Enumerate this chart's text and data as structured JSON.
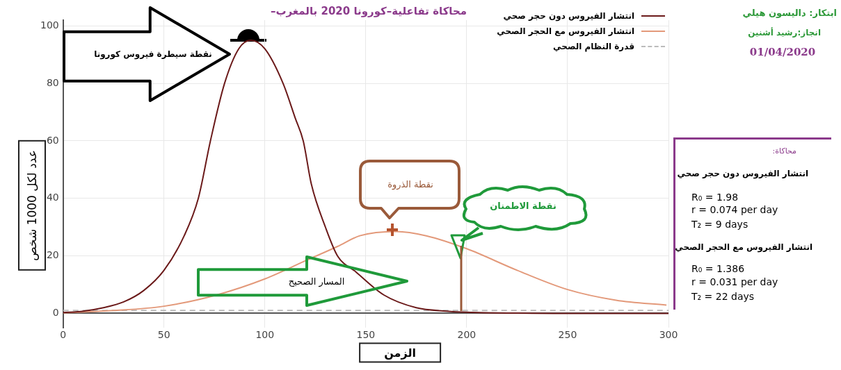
{
  "chart_data": {
    "type": "line",
    "title": "محاكاة تفاعلية–كورونا 2020 بالمغرب–",
    "xlabel": "الزمن",
    "ylabel": "عدد لكل 1000 شخص",
    "xlim": [
      0,
      300
    ],
    "ylim": [
      -5,
      102
    ],
    "xticks": [
      0,
      50,
      100,
      150,
      200,
      250,
      300
    ],
    "yticks": [
      0,
      20,
      40,
      60,
      80,
      100
    ],
    "grid": true,
    "legend": "top right",
    "marker": "none",
    "series": [
      {
        "name": "انتشار الفيروس دون  حجر صحي",
        "color": "#6b1a1a",
        "x": [
          0,
          10,
          20,
          30,
          40,
          50,
          60,
          67,
          73,
          80,
          87,
          93,
          100,
          109,
          115,
          119,
          123,
          130,
          136,
          145,
          159,
          175,
          190,
          200,
          225,
          250,
          300
        ],
        "values": [
          0.3,
          0.8,
          2,
          4,
          8,
          15,
          27,
          40,
          60,
          80,
          92,
          95,
          92,
          80,
          68,
          60,
          45,
          30,
          20,
          14.5,
          6.4,
          2,
          0.8,
          0.4,
          0.1,
          0,
          0
        ]
      },
      {
        "name": "انتشار الفيروس مع الحجر الصحي",
        "color": "#e3997a",
        "x": [
          0,
          25,
          50,
          76,
          100,
          121,
          136,
          147,
          165,
          180,
          200,
          225,
          250,
          274,
          299
        ],
        "values": [
          0.2,
          1,
          2.5,
          6.4,
          12,
          18.6,
          23.3,
          27,
          28.5,
          27,
          22.5,
          15,
          8.3,
          4.6,
          2.9
        ]
      },
      {
        "name": "قدرة النظام الصحي",
        "color": "#bbbbbb",
        "line_style": "dashed",
        "x": [
          0,
          300
        ],
        "values": [
          1,
          1
        ]
      }
    ],
    "annotations": [
      "ابتكار: داليسون هيلي",
      "انجاز:رشيد أشنين",
      "01/04/2020",
      "محاكاة:",
      "انتشار الفيروس دون  حجر صحي",
      "R₀ = 1.98",
      "r = 0.074  per day",
      "T₂ = 9 days",
      "انتشار الفيروس مع الحجر الصحي",
      "R₀ = 1.386",
      "r = 0.031  per day",
      "T₂ = 22 days",
      "المسار الصحيح",
      "نقطة سيطرة فيروس كورونا",
      "نقطة الذروة",
      "نقطة الاطمنان"
    ]
  }
}
